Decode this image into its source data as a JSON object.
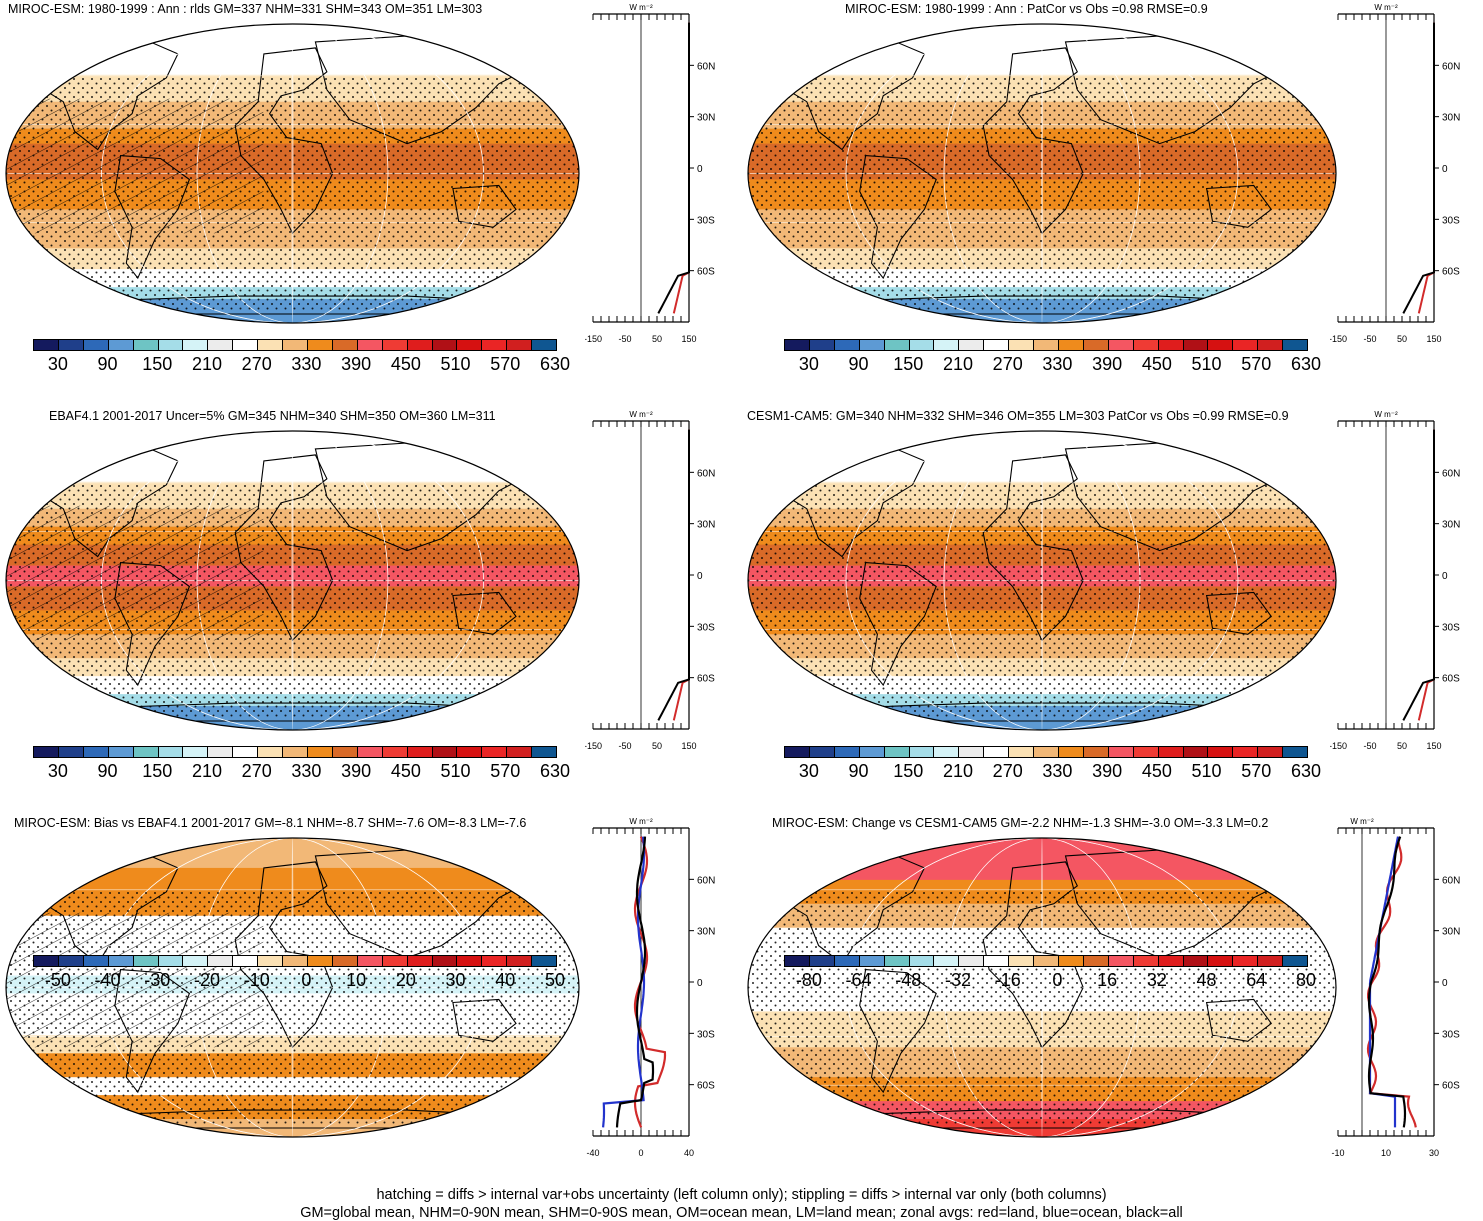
{
  "colors": {
    "abs_palette": [
      "#141a5e",
      "#1f3f8a",
      "#2d69b8",
      "#5d9ad4",
      "#6ec4c4",
      "#a5dde8",
      "#d5f3f7",
      "#ececec",
      "#ffffff",
      "#fbe1b4",
      "#f2b877",
      "#ef8b1c",
      "#d96a28",
      "#f45662",
      "#ef3b34",
      "#df1d1d",
      "#b01016",
      "#d61111",
      "#ea2525",
      "#d11f1f",
      "#0f5691"
    ],
    "diff_palette": [
      "#141a5e",
      "#1f3f8a",
      "#2d69b8",
      "#5d9ad4",
      "#6ec4c4",
      "#a5dde8",
      "#d5f3f7",
      "#ececec",
      "#ffffff",
      "#fbe1b4",
      "#f2b877",
      "#ef8b1c",
      "#d96a28",
      "#f45662",
      "#ef3b34",
      "#df1d1d",
      "#b01016",
      "#d61111",
      "#ea2525",
      "#d11f1f",
      "#0f5691"
    ],
    "land_line": "#d22b2b",
    "ocean_line": "#2233cc",
    "all_line": "#000000"
  },
  "panels": [
    {
      "id": "miroc-clim",
      "title": "MIROC-ESM: 1980-1999 : Ann : rlds GM=337 NHM=331 SHM=343 OM=351 LM=303",
      "colorbar_labels": [
        "30",
        "90",
        "150",
        "210",
        "270",
        "330",
        "390",
        "450",
        "510",
        "570",
        "630"
      ],
      "zonal_unit": "W m⁻²",
      "zonal_xticks": [
        "-150",
        "-50",
        "50",
        "150"
      ],
      "zonal_yticks": [
        "60N",
        "30N",
        "0",
        "30S",
        "60S"
      ],
      "hatched": true
    },
    {
      "id": "miroc-patcor",
      "title": "MIROC-ESM: 1980-1999 : Ann : PatCor vs Obs =0.98 RMSE=0.9",
      "colorbar_labels": [
        "30",
        "90",
        "150",
        "210",
        "270",
        "330",
        "390",
        "450",
        "510",
        "570",
        "630"
      ],
      "zonal_unit": "W m⁻²",
      "zonal_xticks": [
        "-150",
        "-50",
        "50",
        "150"
      ],
      "zonal_yticks": [
        "60N",
        "30N",
        "0",
        "30S",
        "60S"
      ],
      "hatched": false
    },
    {
      "id": "ebaf-obs",
      "title": "EBAF4.1 2001-2017 Uncer=5% GM=345 NHM=340 SHM=350 OM=360 LM=311",
      "colorbar_labels": [
        "30",
        "90",
        "150",
        "210",
        "270",
        "330",
        "390",
        "450",
        "510",
        "570",
        "630"
      ],
      "zonal_unit": "W m⁻²",
      "zonal_xticks": [
        "-150",
        "-50",
        "50",
        "150"
      ],
      "zonal_yticks": [
        "60N",
        "30N",
        "0",
        "30S",
        "60S"
      ],
      "hatched": true
    },
    {
      "id": "cesm-clim",
      "title": "CESM1-CAM5: GM=340 NHM=332 SHM=346 OM=355 LM=303 PatCor vs Obs =0.99 RMSE=0.9",
      "colorbar_labels": [
        "30",
        "90",
        "150",
        "210",
        "270",
        "330",
        "390",
        "450",
        "510",
        "570",
        "630"
      ],
      "zonal_unit": "W m⁻²",
      "zonal_xticks": [
        "-150",
        "-50",
        "50",
        "150"
      ],
      "zonal_yticks": [
        "60N",
        "30N",
        "0",
        "30S",
        "60S"
      ],
      "hatched": false
    },
    {
      "id": "miroc-bias",
      "title": "MIROC-ESM: Bias vs EBAF4.1 2001-2017 GM=-8.1 NHM=-8.7 SHM=-7.6 OM=-8.3 LM=-7.6",
      "colorbar_labels": [
        "-50",
        "-40",
        "-30",
        "-20",
        "-10",
        "0",
        "10",
        "20",
        "30",
        "40",
        "50"
      ],
      "zonal_unit": "W m⁻²",
      "zonal_xticks": [
        "-40",
        "0",
        "40"
      ],
      "zonal_yticks": [
        "60N",
        "30N",
        "0",
        "30S",
        "60S"
      ],
      "hatched": true
    },
    {
      "id": "miroc-change",
      "title": "MIROC-ESM: Change vs CESM1-CAM5 GM=-2.2 NHM=-1.3 SHM=-3.0 OM=-3.3 LM=0.2",
      "colorbar_labels": [
        "-80",
        "-64",
        "-48",
        "-32",
        "-16",
        "0",
        "16",
        "32",
        "48",
        "64",
        "80"
      ],
      "zonal_unit": "W m⁻²",
      "zonal_xticks": [
        "-10",
        "10",
        "30"
      ],
      "zonal_yticks": [
        "60N",
        "30N",
        "0",
        "30S",
        "60S"
      ],
      "hatched": false
    }
  ],
  "footer": {
    "line1": "hatching = diffs > internal var+obs uncertainty (left column only); stippling = diffs > internal var only (both columns)",
    "line2": "GM=global mean, NHM=0-90N mean, SHM=0-90S mean, OM=ocean mean, LM=land mean; zonal avgs: red=land, blue=ocean, black=all"
  }
}
